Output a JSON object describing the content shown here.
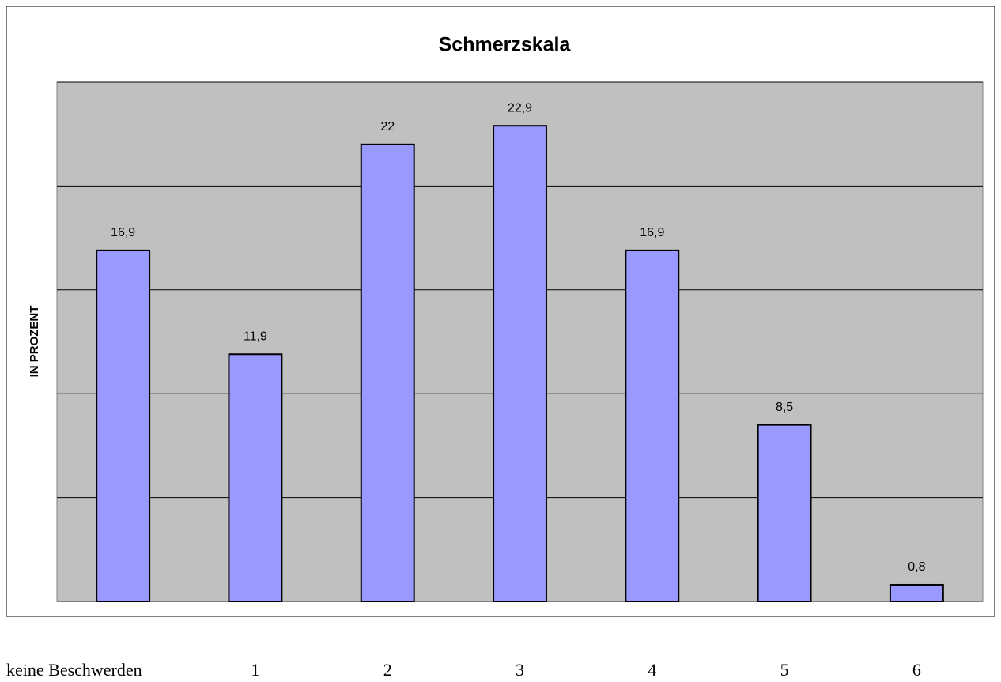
{
  "chart_data": {
    "type": "bar",
    "title": "Schmerzskala",
    "y_label": "IN PROZENT",
    "categories": [
      "keine Beschwerden",
      "1",
      "2",
      "3",
      "4",
      "5",
      "6"
    ],
    "values": [
      16.9,
      11.9,
      22,
      22.9,
      16.9,
      8.5,
      0.8
    ],
    "value_labels": [
      "16,9",
      "11,9",
      "22",
      "22,9",
      "16,9",
      "8,5",
      "0,8"
    ],
    "color": "#9999ff",
    "ylim": [
      0,
      25
    ],
    "yticks": [
      0,
      5,
      10,
      15,
      20,
      25
    ],
    "grid": true
  }
}
